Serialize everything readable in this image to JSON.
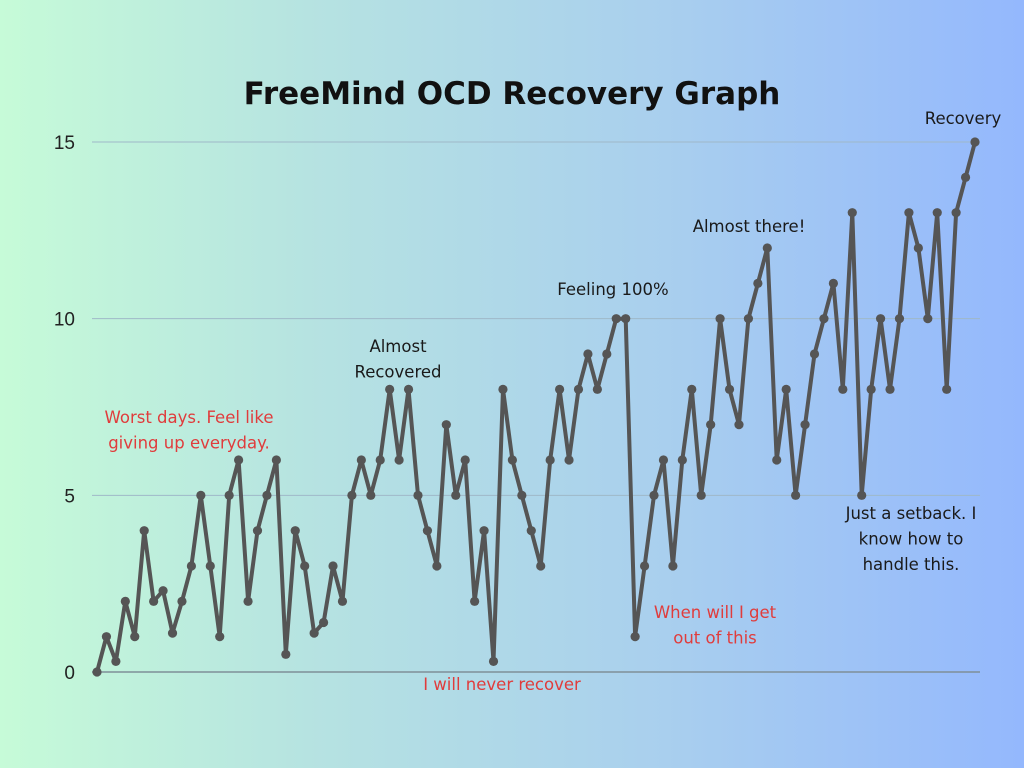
{
  "chart_data": {
    "type": "line",
    "title": "FreeMind OCD Recovery Graph",
    "xlabel": "",
    "ylabel": "",
    "ylim": [
      0,
      15
    ],
    "yticks": [
      0,
      5,
      10,
      15
    ],
    "grid": true,
    "legend": "none",
    "colors": {
      "line": "#555555",
      "grid": "#9fb8c8",
      "baseline": "#7f8f98",
      "annotation_black": "#1a1a1a",
      "annotation_red": "#e03c3c"
    },
    "series": [
      {
        "values": [
          0,
          1,
          0.3,
          2,
          1,
          4,
          2,
          2.3,
          1.1,
          2,
          3,
          5,
          3,
          1,
          5,
          6,
          2,
          4,
          5,
          6,
          0.5,
          4,
          3,
          1.1,
          1.4,
          3,
          2,
          5,
          6,
          5,
          6,
          8,
          6,
          8,
          5,
          4,
          3,
          7,
          5,
          6,
          2,
          4,
          0.3,
          8,
          6,
          5,
          4,
          3,
          6,
          8,
          6,
          8,
          9,
          8,
          9,
          10,
          10,
          1,
          3,
          5,
          6,
          3,
          6,
          8,
          5,
          7,
          10,
          8,
          7,
          10,
          11,
          12,
          6,
          8,
          5,
          7,
          9,
          10,
          11,
          8,
          13,
          5,
          8,
          10,
          8,
          10,
          13,
          12,
          10,
          13,
          8,
          13,
          14,
          15
        ]
      }
    ],
    "annotations": [
      {
        "lines": [
          "Worst days. Feel like",
          "giving up everyday."
        ],
        "color": "red"
      },
      {
        "lines": [
          "Almost",
          "Recovered"
        ],
        "color": "black"
      },
      {
        "lines": [
          "I will never recover"
        ],
        "color": "red"
      },
      {
        "lines": [
          "Feeling 100%"
        ],
        "color": "black"
      },
      {
        "lines": [
          "When will I get",
          "out of this"
        ],
        "color": "red"
      },
      {
        "lines": [
          "Almost there!"
        ],
        "color": "black"
      },
      {
        "lines": [
          "Just a setback. I",
          "know how to",
          "handle this."
        ],
        "color": "black"
      },
      {
        "lines": [
          "Recovery"
        ],
        "color": "black"
      }
    ]
  }
}
